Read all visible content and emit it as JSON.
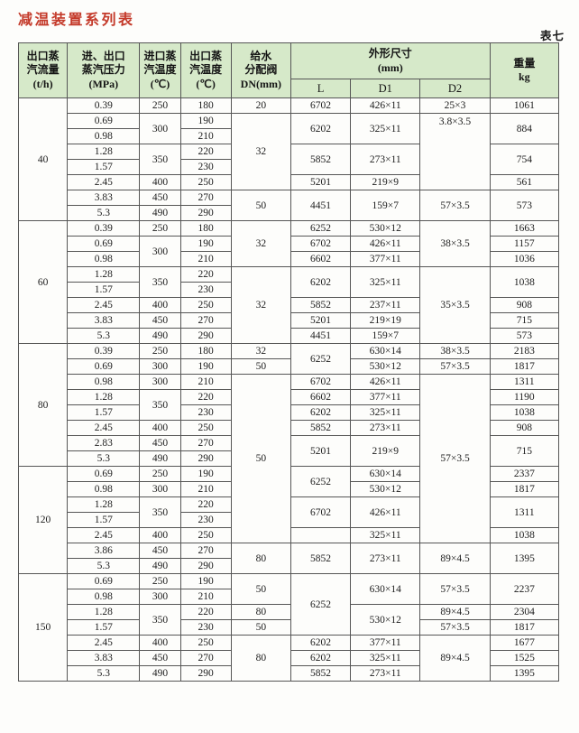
{
  "document": {
    "title": "减温装置系列表",
    "table_number": "表七"
  },
  "colors": {
    "title_red": "#c43a2a",
    "header_bg": "#d6e9c9",
    "grid_line": "#565656"
  },
  "table": {
    "header": {
      "flow": "出口蒸\n汽流量\n(t/h)",
      "pressure": "进、出口\n蒸汽压力\n(MPa)",
      "temp_in": "进口蒸\n汽温度\n(℃)",
      "temp_out": "出口蒸\n汽温度\n(℃)",
      "feed_valve": "给水\n分配阀\nDN(mm)",
      "dimensions": "外形尺寸\n(mm)",
      "dim_l": "L",
      "dim_d1": "D1",
      "dim_d2": "D2",
      "weight": "重量\nkg"
    },
    "rows": [
      [
        {
          "t": "40",
          "rs": 8,
          "flow": true
        },
        {
          "t": "0.39"
        },
        {
          "t": "250"
        },
        {
          "t": "180"
        },
        {
          "t": "20"
        },
        {
          "t": "6702"
        },
        {
          "t": "426×11"
        },
        {
          "t": "25×3"
        },
        {
          "t": "1061"
        }
      ],
      [
        {
          "t": "0.69"
        },
        {
          "t": "300",
          "rs": 2
        },
        {
          "t": "190"
        },
        {
          "t": "32",
          "rs": 5
        },
        {
          "t": "6202",
          "rs": 2
        },
        {
          "t": "325×11",
          "rs": 2
        },
        {
          "t": "3.8×3.5",
          "rs": 5,
          "top": true
        },
        {
          "t": "884",
          "rs": 2
        }
      ],
      [
        {
          "t": "0.98"
        },
        {
          "t": "210"
        }
      ],
      [
        {
          "t": "1.28"
        },
        {
          "t": "350",
          "rs": 2
        },
        {
          "t": "220"
        },
        {
          "t": "5852",
          "rs": 2
        },
        {
          "t": "273×11",
          "rs": 2
        },
        {
          "t": "754",
          "rs": 2
        }
      ],
      [
        {
          "t": "1.57"
        },
        {
          "t": "230"
        }
      ],
      [
        {
          "t": "2.45"
        },
        {
          "t": "400"
        },
        {
          "t": "250"
        },
        {
          "t": "5201"
        },
        {
          "t": "219×9"
        },
        {
          "t": "561"
        }
      ],
      [
        {
          "t": "3.83"
        },
        {
          "t": "450"
        },
        {
          "t": "270"
        },
        {
          "t": "50",
          "rs": 2
        },
        {
          "t": "4451",
          "rs": 2
        },
        {
          "t": "159×7",
          "rs": 2
        },
        {
          "t": "57×3.5",
          "rs": 2
        },
        {
          "t": "573",
          "rs": 2
        }
      ],
      [
        {
          "t": "5.3"
        },
        {
          "t": "490"
        },
        {
          "t": "290"
        }
      ],
      [
        {
          "t": "60",
          "rs": 8,
          "flow": true
        },
        {
          "t": "0.39"
        },
        {
          "t": "250"
        },
        {
          "t": "180"
        },
        {
          "t": "32",
          "rs": 3
        },
        {
          "t": "6252"
        },
        {
          "t": "530×12"
        },
        {
          "t": "38×3.5",
          "rs": 3
        },
        {
          "t": "1663"
        }
      ],
      [
        {
          "t": "0.69"
        },
        {
          "t": "300",
          "rs": 2
        },
        {
          "t": "190"
        },
        {
          "t": "6702"
        },
        {
          "t": "426×11"
        },
        {
          "t": "1157"
        }
      ],
      [
        {
          "t": "0.98"
        },
        {
          "t": "210"
        },
        {
          "t": "6602"
        },
        {
          "t": "377×11"
        },
        {
          "t": "1036"
        }
      ],
      [
        {
          "t": "1.28"
        },
        {
          "t": "350",
          "rs": 2
        },
        {
          "t": "220"
        },
        {
          "t": "32",
          "rs": 5
        },
        {
          "t": "6202",
          "rs": 2
        },
        {
          "t": "325×11",
          "rs": 2
        },
        {
          "t": "35×3.5",
          "rs": 5
        },
        {
          "t": "1038",
          "rs": 2
        }
      ],
      [
        {
          "t": "1.57"
        },
        {
          "t": "230"
        }
      ],
      [
        {
          "t": "2.45"
        },
        {
          "t": "400"
        },
        {
          "t": "250"
        },
        {
          "t": "5852"
        },
        {
          "t": "237×11"
        },
        {
          "t": "908"
        }
      ],
      [
        {
          "t": "3.83"
        },
        {
          "t": "450"
        },
        {
          "t": "270"
        },
        {
          "t": "5201"
        },
        {
          "t": "219×19"
        },
        {
          "t": "715"
        }
      ],
      [
        {
          "t": "5.3"
        },
        {
          "t": "490"
        },
        {
          "t": "290"
        },
        {
          "t": "4451"
        },
        {
          "t": "159×7"
        },
        {
          "t": "573"
        }
      ],
      [
        {
          "t": "80",
          "rs": 8,
          "flow": true
        },
        {
          "t": "0.39"
        },
        {
          "t": "250"
        },
        {
          "t": "180"
        },
        {
          "t": "32"
        },
        {
          "t": "6252",
          "rs": 2
        },
        {
          "t": "630×14"
        },
        {
          "t": "38×3.5"
        },
        {
          "t": "2183"
        }
      ],
      [
        {
          "t": "0.69"
        },
        {
          "t": "300"
        },
        {
          "t": "190"
        },
        {
          "t": "50"
        },
        {
          "t": "530×12"
        },
        {
          "t": "57×3.5"
        },
        {
          "t": "1817"
        }
      ],
      [
        {
          "t": "0.98"
        },
        {
          "t": "300"
        },
        {
          "t": "210"
        },
        {
          "t": "50",
          "rs": 11
        },
        {
          "t": "6702"
        },
        {
          "t": "426×11"
        },
        {
          "t": "57×3.5",
          "rs": 11
        },
        {
          "t": "1311"
        }
      ],
      [
        {
          "t": "1.28"
        },
        {
          "t": "350",
          "rs": 2
        },
        {
          "t": "220"
        },
        {
          "t": "6602"
        },
        {
          "t": "377×11"
        },
        {
          "t": "1190"
        }
      ],
      [
        {
          "t": "1.57"
        },
        {
          "t": "230"
        },
        {
          "t": "6202"
        },
        {
          "t": "325×11"
        },
        {
          "t": "1038"
        }
      ],
      [
        {
          "t": "2.45"
        },
        {
          "t": "400"
        },
        {
          "t": "250"
        },
        {
          "t": "5852"
        },
        {
          "t": "273×11"
        },
        {
          "t": "908"
        }
      ],
      [
        {
          "t": "2.83"
        },
        {
          "t": "450"
        },
        {
          "t": "270"
        },
        {
          "t": "5201",
          "rs": 2
        },
        {
          "t": "219×9",
          "rs": 2
        },
        {
          "t": "715",
          "rs": 2
        }
      ],
      [
        {
          "t": "5.3"
        },
        {
          "t": "490"
        },
        {
          "t": "290"
        }
      ],
      [
        {
          "t": "120",
          "rs": 7,
          "flow": true
        },
        {
          "t": "0.69"
        },
        {
          "t": "250"
        },
        {
          "t": "190"
        },
        {
          "t": "6252",
          "rs": 2
        },
        {
          "t": "630×14"
        },
        {
          "t": "2337"
        }
      ],
      [
        {
          "t": "0.98"
        },
        {
          "t": "300"
        },
        {
          "t": "210"
        },
        {
          "t": "530×12"
        },
        {
          "t": "1817"
        }
      ],
      [
        {
          "t": "1.28"
        },
        {
          "t": "350",
          "rs": 2
        },
        {
          "t": "220"
        },
        {
          "t": "6702",
          "rs": 2
        },
        {
          "t": "426×11",
          "rs": 2
        },
        {
          "t": "1311",
          "rs": 2
        }
      ],
      [
        {
          "t": "1.57"
        },
        {
          "t": "230"
        }
      ],
      [
        {
          "t": "2.45"
        },
        {
          "t": "400"
        },
        {
          "t": "250"
        },
        {
          "t": ""
        },
        {
          "t": "325×11"
        },
        {
          "t": "1038"
        }
      ],
      [
        {
          "t": "3.86"
        },
        {
          "t": "450"
        },
        {
          "t": "270"
        },
        {
          "t": "80",
          "rs": 2
        },
        {
          "t": "5852",
          "rs": 2
        },
        {
          "t": "273×11",
          "rs": 2
        },
        {
          "t": "89×4.5",
          "rs": 2
        },
        {
          "t": "1395",
          "rs": 2
        }
      ],
      [
        {
          "t": "5.3"
        },
        {
          "t": "490"
        },
        {
          "t": "290"
        }
      ],
      [
        {
          "t": "150",
          "rs": 7,
          "flow": true
        },
        {
          "t": "0.69"
        },
        {
          "t": "250"
        },
        {
          "t": "190"
        },
        {
          "t": "50",
          "rs": 2
        },
        {
          "t": "6252",
          "rs": 4
        },
        {
          "t": "630×14",
          "rs": 2
        },
        {
          "t": "57×3.5",
          "rs": 2
        },
        {
          "t": "2237",
          "rs": 2
        }
      ],
      [
        {
          "t": "0.98"
        },
        {
          "t": "300"
        },
        {
          "t": "210"
        }
      ],
      [
        {
          "t": "1.28"
        },
        {
          "t": "350",
          "rs": 2
        },
        {
          "t": "220"
        },
        {
          "t": "80"
        },
        {
          "t": "530×12",
          "rs": 2
        },
        {
          "t": "89×4.5"
        },
        {
          "t": "2304"
        }
      ],
      [
        {
          "t": "1.57"
        },
        {
          "t": "230"
        },
        {
          "t": "50"
        },
        {
          "t": "57×3.5"
        },
        {
          "t": "1817"
        }
      ],
      [
        {
          "t": "2.45"
        },
        {
          "t": "400"
        },
        {
          "t": "250"
        },
        {
          "t": "80",
          "rs": 3
        },
        {
          "t": "6202"
        },
        {
          "t": "377×11"
        },
        {
          "t": "89×4.5",
          "rs": 3
        },
        {
          "t": "1677"
        }
      ],
      [
        {
          "t": "3.83"
        },
        {
          "t": "450"
        },
        {
          "t": "270"
        },
        {
          "t": "6202"
        },
        {
          "t": "325×11"
        },
        {
          "t": "1525"
        }
      ],
      [
        {
          "t": "5.3"
        },
        {
          "t": "490"
        },
        {
          "t": "290"
        },
        {
          "t": "5852"
        },
        {
          "t": "273×11"
        },
        {
          "t": "1395"
        }
      ]
    ]
  }
}
